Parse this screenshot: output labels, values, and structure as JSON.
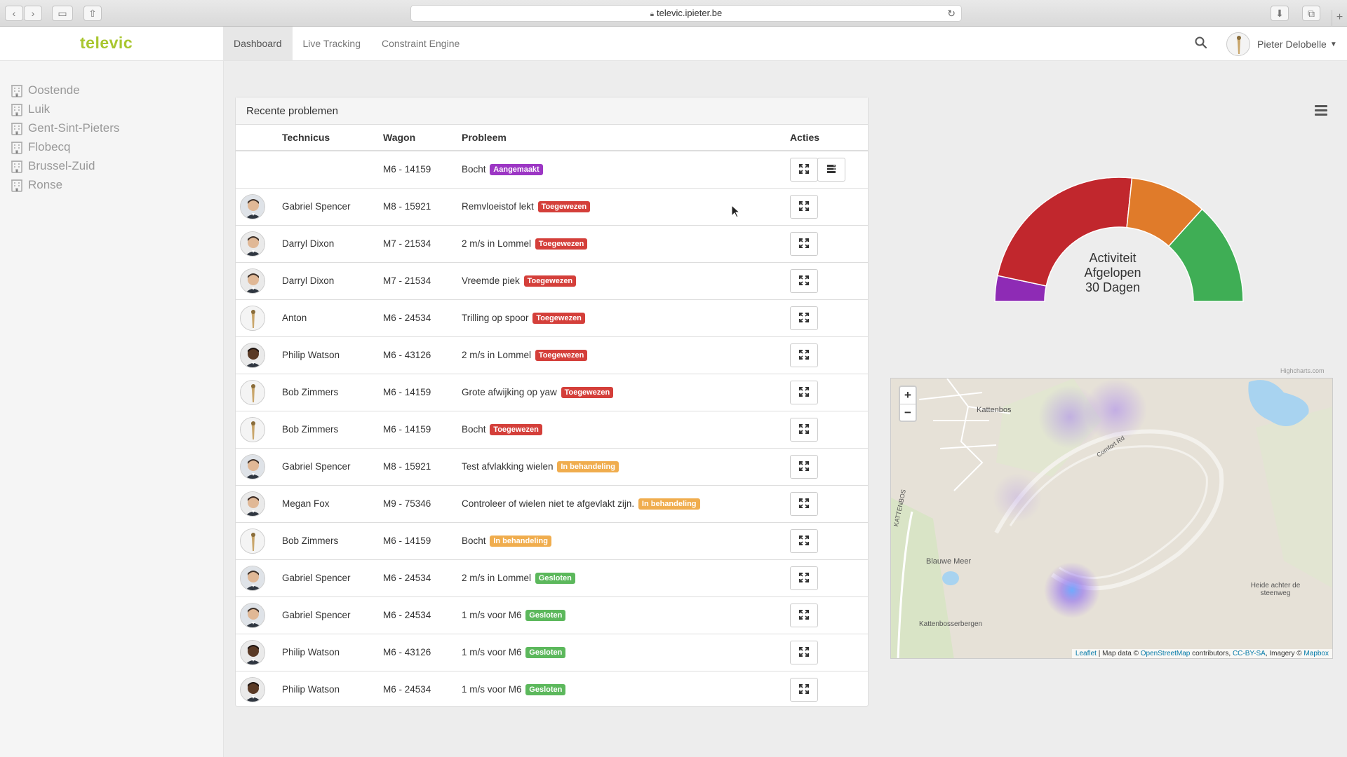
{
  "browser": {
    "url": "televic.ipieter.be"
  },
  "header": {
    "logo": "televic",
    "nav": [
      "Dashboard",
      "Live Tracking",
      "Constraint Engine"
    ],
    "user_name": "Pieter Delobelle"
  },
  "sidebar": {
    "items": [
      "Oostende",
      "Luik",
      "Gent-Sint-Pieters",
      "Flobecq",
      "Brussel-Zuid",
      "Ronse"
    ]
  },
  "panel": {
    "title": "Recente problemen",
    "columns": [
      "Technicus",
      "Wagon",
      "Probleem",
      "Acties"
    ],
    "rows": [
      {
        "tech": "",
        "wagon": "M6 - 14159",
        "problem": "Bocht",
        "status": "Aangemaakt",
        "status_type": "aangemaakt"
      },
      {
        "tech": "Gabriel Spencer",
        "wagon": "M8 - 15921",
        "problem": "Remvloeistof lekt",
        "status": "Toegewezen",
        "status_type": "toegewezen"
      },
      {
        "tech": "Darryl Dixon",
        "wagon": "M7 - 21534",
        "problem": "2 m/s in Lommel",
        "status": "Toegewezen",
        "status_type": "toegewezen"
      },
      {
        "tech": "Darryl Dixon",
        "wagon": "M7 - 21534",
        "problem": "Vreemde piek",
        "status": "Toegewezen",
        "status_type": "toegewezen"
      },
      {
        "tech": "Anton",
        "wagon": "M6 - 24534",
        "problem": "Trilling op spoor",
        "status": "Toegewezen",
        "status_type": "toegewezen"
      },
      {
        "tech": "Philip Watson",
        "wagon": "M6 - 43126",
        "problem": "2 m/s in Lommel",
        "status": "Toegewezen",
        "status_type": "toegewezen"
      },
      {
        "tech": "Bob Zimmers",
        "wagon": "M6 - 14159",
        "problem": "Grote afwijking op yaw",
        "status": "Toegewezen",
        "status_type": "toegewezen"
      },
      {
        "tech": "Bob Zimmers",
        "wagon": "M6 - 14159",
        "problem": "Bocht",
        "status": "Toegewezen",
        "status_type": "toegewezen"
      },
      {
        "tech": "Gabriel Spencer",
        "wagon": "M8 - 15921",
        "problem": "Test afvlakking wielen",
        "status": "In behandeling",
        "status_type": "behandeling"
      },
      {
        "tech": "Megan Fox",
        "wagon": "M9 - 75346",
        "problem": "Controleer of wielen niet te afgevlakt zijn.",
        "status": "In behandeling",
        "status_type": "behandeling"
      },
      {
        "tech": "Bob Zimmers",
        "wagon": "M6 - 14159",
        "problem": "Bocht",
        "status": "In behandeling",
        "status_type": "behandeling"
      },
      {
        "tech": "Gabriel Spencer",
        "wagon": "M6 - 24534",
        "problem": "2 m/s in Lommel",
        "status": "Gesloten",
        "status_type": "gesloten"
      },
      {
        "tech": "Gabriel Spencer",
        "wagon": "M6 - 24534",
        "problem": "1 m/s voor M6",
        "status": "Gesloten",
        "status_type": "gesloten"
      },
      {
        "tech": "Philip Watson",
        "wagon": "M6 - 43126",
        "problem": "1 m/s voor M6",
        "status": "Gesloten",
        "status_type": "gesloten"
      },
      {
        "tech": "Philip Watson",
        "wagon": "M6 - 24534",
        "problem": "1 m/s voor M6",
        "status": "Gesloten",
        "status_type": "gesloten"
      }
    ]
  },
  "gauge": {
    "label_lines": [
      "Activiteit",
      "Afgelopen",
      "30 Dagen"
    ],
    "credit": "Highcharts.com",
    "slice_colors": [
      "#8e2bb5",
      "#c1272d",
      "#e07b2a",
      "#3fae55"
    ]
  },
  "chart_data": {
    "type": "pie",
    "title": "Activiteit Afgelopen 30 Dagen",
    "slices": [
      {
        "value": 1,
        "color": "#8e2bb5"
      },
      {
        "value": 7,
        "color": "#c1272d"
      },
      {
        "value": 3,
        "color": "#e07b2a"
      },
      {
        "value": 4,
        "color": "#3fae55"
      }
    ]
  },
  "map": {
    "zoom_in": "+",
    "zoom_out": "−",
    "labels": {
      "kattenbos": "Kattenbos",
      "blauwe_meer": "Blauwe Meer",
      "heide": "Heide achter de steenweg",
      "kattenbosserbergen": "Kattenbosserbergen",
      "road_kattenbos": "KATTENBOS",
      "comfort": "Comfort Rd"
    },
    "attribution": {
      "leaflet": "Leaflet",
      "mapdata": " | Map data © ",
      "osm": "OpenStreetMap",
      "contrib": " contributors, ",
      "license": "CC-BY-SA",
      "imagery": ", Imagery © ",
      "mapbox": "Mapbox"
    }
  }
}
